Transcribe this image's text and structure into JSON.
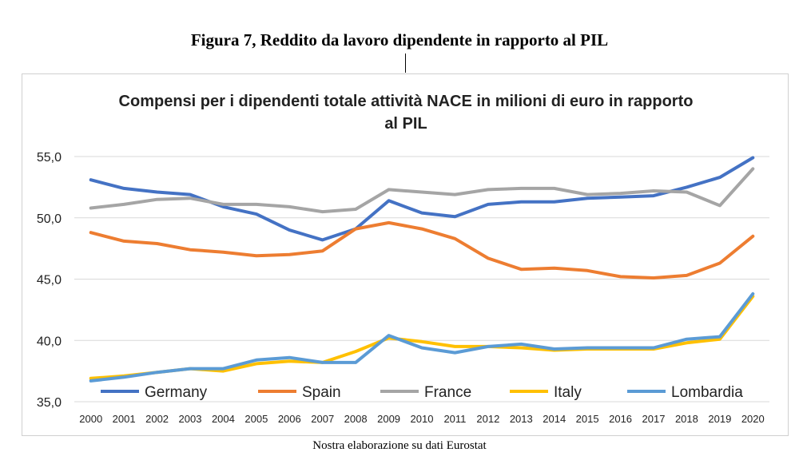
{
  "figure": {
    "title": "Figura 7, Reddito da lavoro dipendente in rapporto al PIL",
    "source": "Nostra elaborazione su dati Eurostat"
  },
  "chart_data": {
    "type": "line",
    "title_line1": "Compensi per i dipendenti totale attività NACE in milioni di euro in rapporto",
    "title_line2": "al PIL",
    "xlabel": "",
    "ylabel": "",
    "ylim": [
      35,
      55
    ],
    "yticks": [
      "35,0",
      "40,0",
      "45,0",
      "50,0",
      "55,0"
    ],
    "ytick_values": [
      35,
      40,
      45,
      50,
      55
    ],
    "grid": true,
    "legend_position": "bottom-inside",
    "categories": [
      "2000",
      "2001",
      "2002",
      "2003",
      "2004",
      "2005",
      "2006",
      "2007",
      "2008",
      "2009",
      "2010",
      "2011",
      "2012",
      "2013",
      "2014",
      "2015",
      "2016",
      "2017",
      "2018",
      "2019",
      "2020"
    ],
    "series": [
      {
        "name": "Germany",
        "color": "#4472C4",
        "values": [
          53.1,
          52.4,
          52.1,
          51.9,
          50.9,
          50.3,
          49.0,
          48.2,
          49.1,
          51.4,
          50.4,
          50.1,
          51.1,
          51.3,
          51.3,
          51.6,
          51.7,
          51.8,
          52.5,
          53.3,
          54.9
        ]
      },
      {
        "name": "Spain",
        "color": "#ED7D31",
        "values": [
          48.8,
          48.1,
          47.9,
          47.4,
          47.2,
          46.9,
          47.0,
          47.3,
          49.1,
          49.6,
          49.1,
          48.3,
          46.7,
          45.8,
          45.9,
          45.7,
          45.2,
          45.1,
          45.3,
          46.3,
          48.5
        ]
      },
      {
        "name": "France",
        "color": "#A5A5A5",
        "values": [
          50.8,
          51.1,
          51.5,
          51.6,
          51.1,
          51.1,
          50.9,
          50.5,
          50.7,
          52.3,
          52.1,
          51.9,
          52.3,
          52.4,
          52.4,
          51.9,
          52.0,
          52.2,
          52.1,
          51.0,
          54.0
        ]
      },
      {
        "name": "Italy",
        "color": "#FFC000",
        "values": [
          36.9,
          37.1,
          37.4,
          37.7,
          37.5,
          38.1,
          38.3,
          38.2,
          39.1,
          40.2,
          39.9,
          39.5,
          39.5,
          39.4,
          39.2,
          39.3,
          39.3,
          39.3,
          39.8,
          40.1,
          43.6
        ]
      },
      {
        "name": "Lombardia",
        "color": "#5B9BD5",
        "values": [
          36.7,
          37.0,
          37.4,
          37.7,
          37.7,
          38.4,
          38.6,
          38.2,
          38.2,
          40.4,
          39.4,
          39.0,
          39.5,
          39.7,
          39.3,
          39.4,
          39.4,
          39.4,
          40.1,
          40.3,
          43.8
        ]
      }
    ]
  }
}
